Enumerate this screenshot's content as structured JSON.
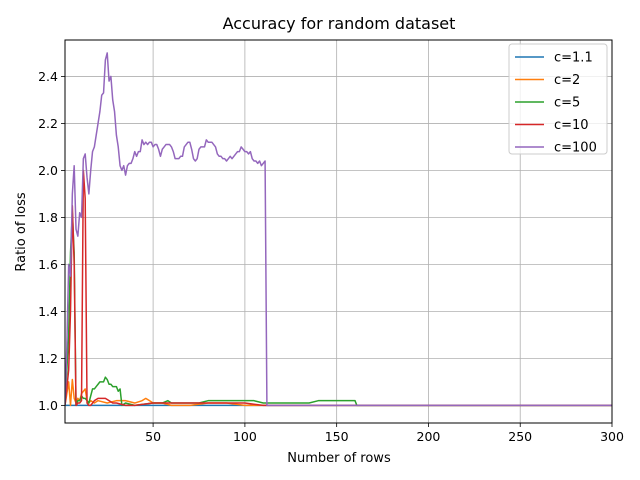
{
  "chart_data": {
    "type": "line",
    "title": "Accuracy for random dataset",
    "xlabel": "Number of rows",
    "ylabel": "Ratio of loss",
    "xlim": [
      2,
      300
    ],
    "ylim": [
      0.925,
      2.555
    ],
    "xticks": [
      50,
      100,
      150,
      200,
      250,
      300
    ],
    "yticks": [
      1.0,
      1.2,
      1.4,
      1.6,
      1.8,
      2.0,
      2.2,
      2.4
    ],
    "grid": true,
    "legend_position": "top-right",
    "series": [
      {
        "name": "c=1.1",
        "color": "#1f77b4",
        "points": [
          [
            2,
            1.0
          ],
          [
            30,
            1.0
          ],
          [
            60,
            1.0
          ],
          [
            100,
            1.0
          ],
          [
            150,
            1.0
          ],
          [
            200,
            1.0
          ],
          [
            250,
            1.0
          ],
          [
            300,
            1.0
          ]
        ]
      },
      {
        "name": "c=2",
        "color": "#ff7f0e",
        "points": [
          [
            2,
            1.0
          ],
          [
            3,
            1.05
          ],
          [
            4,
            1.1
          ],
          [
            5,
            1.0
          ],
          [
            6,
            1.11
          ],
          [
            7,
            1.03
          ],
          [
            8,
            1.01
          ],
          [
            9,
            1.03
          ],
          [
            10,
            1.02
          ],
          [
            11,
            1.05
          ],
          [
            12,
            1.06
          ],
          [
            13,
            1.07
          ],
          [
            14,
            1.02
          ],
          [
            15,
            1.01
          ],
          [
            16,
            1.02
          ],
          [
            18,
            1.01
          ],
          [
            20,
            1.02
          ],
          [
            25,
            1.01
          ],
          [
            30,
            1.02
          ],
          [
            35,
            1.02
          ],
          [
            40,
            1.01
          ],
          [
            44,
            1.02
          ],
          [
            46,
            1.03
          ],
          [
            48,
            1.02
          ],
          [
            50,
            1.01
          ],
          [
            55,
            1.01
          ],
          [
            60,
            1.0
          ],
          [
            70,
            1.0
          ],
          [
            80,
            1.01
          ],
          [
            90,
            1.01
          ],
          [
            100,
            1.0
          ],
          [
            110,
            1.0
          ],
          [
            150,
            1.0
          ],
          [
            200,
            1.0
          ],
          [
            250,
            1.0
          ],
          [
            300,
            1.0
          ]
        ]
      },
      {
        "name": "c=5",
        "color": "#2ca02c",
        "points": [
          [
            2,
            1.0
          ],
          [
            4,
            1.3
          ],
          [
            5,
            1.65
          ],
          [
            6,
            1.82
          ],
          [
            7,
            1.65
          ],
          [
            8,
            1.0
          ],
          [
            9,
            1.02
          ],
          [
            10,
            1.02
          ],
          [
            11,
            1.04
          ],
          [
            12,
            1.03
          ],
          [
            13,
            1.03
          ],
          [
            14,
            1.02
          ],
          [
            15,
            1.01
          ],
          [
            16,
            1.04
          ],
          [
            17,
            1.07
          ],
          [
            18,
            1.07
          ],
          [
            19,
            1.08
          ],
          [
            20,
            1.09
          ],
          [
            21,
            1.1
          ],
          [
            22,
            1.1
          ],
          [
            23,
            1.1
          ],
          [
            24,
            1.12
          ],
          [
            25,
            1.11
          ],
          [
            26,
            1.09
          ],
          [
            27,
            1.09
          ],
          [
            28,
            1.08
          ],
          [
            30,
            1.08
          ],
          [
            31,
            1.06
          ],
          [
            32,
            1.07
          ],
          [
            33,
            1.0
          ],
          [
            35,
            1.01
          ],
          [
            40,
            1.0
          ],
          [
            50,
            1.01
          ],
          [
            55,
            1.01
          ],
          [
            58,
            1.02
          ],
          [
            60,
            1.01
          ],
          [
            65,
            1.01
          ],
          [
            70,
            1.01
          ],
          [
            75,
            1.01
          ],
          [
            80,
            1.02
          ],
          [
            85,
            1.02
          ],
          [
            90,
            1.02
          ],
          [
            95,
            1.02
          ],
          [
            100,
            1.02
          ],
          [
            105,
            1.02
          ],
          [
            110,
            1.01
          ],
          [
            115,
            1.01
          ],
          [
            120,
            1.01
          ],
          [
            125,
            1.01
          ],
          [
            130,
            1.01
          ],
          [
            135,
            1.01
          ],
          [
            140,
            1.02
          ],
          [
            145,
            1.02
          ],
          [
            150,
            1.02
          ],
          [
            155,
            1.02
          ],
          [
            160,
            1.02
          ],
          [
            161,
            1.0
          ],
          [
            170,
            1.0
          ],
          [
            200,
            1.0
          ],
          [
            250,
            1.0
          ],
          [
            300,
            1.0
          ]
        ]
      },
      {
        "name": "c=10",
        "color": "#d62728",
        "points": [
          [
            2,
            1.0
          ],
          [
            4,
            1.15
          ],
          [
            5,
            1.4
          ],
          [
            6,
            1.85
          ],
          [
            7,
            1.6
          ],
          [
            8,
            1.0
          ],
          [
            9,
            1.01
          ],
          [
            10,
            1.01
          ],
          [
            11,
            1.02
          ],
          [
            12,
            2.0
          ],
          [
            13,
            1.88
          ],
          [
            14,
            1.01
          ],
          [
            15,
            1.0
          ],
          [
            16,
            1.0
          ],
          [
            17,
            1.01
          ],
          [
            18,
            1.02
          ],
          [
            20,
            1.03
          ],
          [
            22,
            1.03
          ],
          [
            24,
            1.03
          ],
          [
            26,
            1.02
          ],
          [
            28,
            1.01
          ],
          [
            30,
            1.01
          ],
          [
            35,
            1.0
          ],
          [
            40,
            1.0
          ],
          [
            50,
            1.01
          ],
          [
            60,
            1.01
          ],
          [
            70,
            1.01
          ],
          [
            80,
            1.01
          ],
          [
            90,
            1.01
          ],
          [
            100,
            1.01
          ],
          [
            110,
            1.0
          ],
          [
            150,
            1.0
          ],
          [
            200,
            1.0
          ],
          [
            250,
            1.0
          ],
          [
            300,
            1.0
          ]
        ]
      },
      {
        "name": "c=100",
        "color": "#9467bd",
        "points": [
          [
            2,
            1.0
          ],
          [
            3,
            1.25
          ],
          [
            4,
            1.6
          ],
          [
            5,
            1.55
          ],
          [
            6,
            1.9
          ],
          [
            7,
            2.02
          ],
          [
            8,
            1.75
          ],
          [
            9,
            1.72
          ],
          [
            10,
            1.82
          ],
          [
            11,
            1.8
          ],
          [
            12,
            2.05
          ],
          [
            13,
            2.07
          ],
          [
            14,
            1.97
          ],
          [
            15,
            1.9
          ],
          [
            16,
            2.0
          ],
          [
            17,
            2.08
          ],
          [
            18,
            2.1
          ],
          [
            19,
            2.15
          ],
          [
            20,
            2.2
          ],
          [
            21,
            2.25
          ],
          [
            22,
            2.32
          ],
          [
            23,
            2.33
          ],
          [
            24,
            2.47
          ],
          [
            25,
            2.5
          ],
          [
            26,
            2.38
          ],
          [
            27,
            2.4
          ],
          [
            28,
            2.3
          ],
          [
            29,
            2.25
          ],
          [
            30,
            2.15
          ],
          [
            31,
            2.1
          ],
          [
            32,
            2.02
          ],
          [
            33,
            2.0
          ],
          [
            34,
            2.02
          ],
          [
            35,
            1.98
          ],
          [
            36,
            2.02
          ],
          [
            37,
            2.03
          ],
          [
            38,
            2.03
          ],
          [
            39,
            2.05
          ],
          [
            40,
            2.08
          ],
          [
            41,
            2.06
          ],
          [
            42,
            2.08
          ],
          [
            43,
            2.08
          ],
          [
            44,
            2.13
          ],
          [
            45,
            2.11
          ],
          [
            46,
            2.12
          ],
          [
            47,
            2.11
          ],
          [
            48,
            2.12
          ],
          [
            49,
            2.12
          ],
          [
            50,
            2.1
          ],
          [
            51,
            2.11
          ],
          [
            52,
            2.11
          ],
          [
            53,
            2.09
          ],
          [
            54,
            2.06
          ],
          [
            55,
            2.09
          ],
          [
            56,
            2.1
          ],
          [
            57,
            2.11
          ],
          [
            58,
            2.11
          ],
          [
            59,
            2.11
          ],
          [
            60,
            2.1
          ],
          [
            61,
            2.08
          ],
          [
            62,
            2.05
          ],
          [
            63,
            2.05
          ],
          [
            64,
            2.05
          ],
          [
            65,
            2.06
          ],
          [
            66,
            2.06
          ],
          [
            67,
            2.1
          ],
          [
            68,
            2.11
          ],
          [
            69,
            2.12
          ],
          [
            70,
            2.12
          ],
          [
            71,
            2.09
          ],
          [
            72,
            2.05
          ],
          [
            73,
            2.04
          ],
          [
            74,
            2.05
          ],
          [
            75,
            2.09
          ],
          [
            76,
            2.1
          ],
          [
            77,
            2.1
          ],
          [
            78,
            2.1
          ],
          [
            79,
            2.13
          ],
          [
            80,
            2.12
          ],
          [
            81,
            2.12
          ],
          [
            82,
            2.12
          ],
          [
            83,
            2.11
          ],
          [
            84,
            2.1
          ],
          [
            85,
            2.07
          ],
          [
            86,
            2.06
          ],
          [
            87,
            2.06
          ],
          [
            88,
            2.05
          ],
          [
            89,
            2.05
          ],
          [
            90,
            2.04
          ],
          [
            91,
            2.05
          ],
          [
            92,
            2.06
          ],
          [
            93,
            2.05
          ],
          [
            94,
            2.06
          ],
          [
            95,
            2.07
          ],
          [
            96,
            2.08
          ],
          [
            97,
            2.08
          ],
          [
            98,
            2.1
          ],
          [
            99,
            2.09
          ],
          [
            100,
            2.08
          ],
          [
            101,
            2.08
          ],
          [
            102,
            2.07
          ],
          [
            103,
            2.08
          ],
          [
            104,
            2.05
          ],
          [
            105,
            2.04
          ],
          [
            106,
            2.04
          ],
          [
            107,
            2.03
          ],
          [
            108,
            2.04
          ],
          [
            109,
            2.02
          ],
          [
            110,
            2.03
          ],
          [
            111,
            2.04
          ],
          [
            112,
            1.0
          ],
          [
            113,
            1.0
          ],
          [
            120,
            1.0
          ],
          [
            150,
            1.0
          ],
          [
            200,
            1.0
          ],
          [
            250,
            1.0
          ],
          [
            300,
            1.0
          ]
        ]
      }
    ]
  }
}
